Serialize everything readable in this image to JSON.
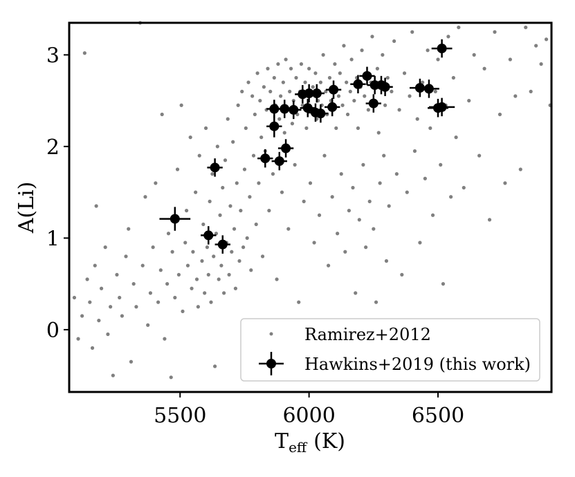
{
  "chart_data": {
    "type": "scatter",
    "title": "",
    "xlabel": "T",
    "xlabel_sub": "eff",
    "xlabel_unit": "(K)",
    "ylabel": "A(Li)",
    "xlim": [
      5070,
      6940
    ],
    "ylim": [
      -0.68,
      3.35
    ],
    "x_ticks": [
      5500,
      6000,
      6500
    ],
    "y_ticks": [
      0,
      1,
      2,
      3
    ],
    "grid": false,
    "legend_position": "lower-right",
    "series": [
      {
        "name": "Ramirez+2012",
        "marker": "small-dot",
        "color": "#808080",
        "points": [
          [
            5090,
            0.35
          ],
          [
            5105,
            -0.1
          ],
          [
            5120,
            0.15
          ],
          [
            5130,
            3.02
          ],
          [
            5140,
            0.55
          ],
          [
            5150,
            0.3
          ],
          [
            5160,
            -0.2
          ],
          [
            5170,
            0.7
          ],
          [
            5175,
            1.35
          ],
          [
            5185,
            0.1
          ],
          [
            5195,
            0.45
          ],
          [
            5210,
            0.9
          ],
          [
            5220,
            -0.05
          ],
          [
            5230,
            0.25
          ],
          [
            5240,
            -0.5
          ],
          [
            5255,
            0.6
          ],
          [
            5265,
            0.35
          ],
          [
            5275,
            0.15
          ],
          [
            5290,
            0.8
          ],
          [
            5300,
            1.1
          ],
          [
            5310,
            -0.35
          ],
          [
            5320,
            0.5
          ],
          [
            5330,
            0.25
          ],
          [
            5345,
            3.35
          ],
          [
            5355,
            0.7
          ],
          [
            5365,
            1.45
          ],
          [
            5375,
            0.05
          ],
          [
            5385,
            0.4
          ],
          [
            5395,
            0.9
          ],
          [
            5405,
            1.6
          ],
          [
            5415,
            0.3
          ],
          [
            5425,
            0.65
          ],
          [
            5430,
            2.35
          ],
          [
            5440,
            -0.1
          ],
          [
            5450,
            0.5
          ],
          [
            5455,
            1.05
          ],
          [
            5465,
            -0.52
          ],
          [
            5470,
            0.85
          ],
          [
            5480,
            0.35
          ],
          [
            5490,
            1.75
          ],
          [
            5495,
            0.6
          ],
          [
            5505,
            2.45
          ],
          [
            5510,
            0.2
          ],
          [
            5520,
            0.95
          ],
          [
            5525,
            1.3
          ],
          [
            5530,
            0.7
          ],
          [
            5540,
            2.1
          ],
          [
            5545,
            0.45
          ],
          [
            5550,
            0.85
          ],
          [
            5560,
            1.5
          ],
          [
            5565,
            0.55
          ],
          [
            5570,
            0.25
          ],
          [
            5575,
            1.9
          ],
          [
            5585,
            0.75
          ],
          [
            5590,
            1.15
          ],
          [
            5595,
            0.4
          ],
          [
            5600,
            2.2
          ],
          [
            5605,
            0.9
          ],
          [
            5610,
            0.6
          ],
          [
            5615,
            1.4
          ],
          [
            5620,
            0.3
          ],
          [
            5625,
            1.7
          ],
          [
            5630,
            0.8
          ],
          [
            5635,
            -0.4
          ],
          [
            5640,
            1.05
          ],
          [
            5645,
            2.0
          ],
          [
            5650,
            0.55
          ],
          [
            5655,
            1.25
          ],
          [
            5660,
            0.7
          ],
          [
            5665,
            1.55
          ],
          [
            5670,
            0.4
          ],
          [
            5675,
            1.85
          ],
          [
            5680,
            0.95
          ],
          [
            5685,
            2.3
          ],
          [
            5690,
            0.6
          ],
          [
            5695,
            1.35
          ],
          [
            5700,
            0.85
          ],
          [
            5705,
            2.05
          ],
          [
            5710,
            1.1
          ],
          [
            5715,
            0.45
          ],
          [
            5720,
            1.6
          ],
          [
            5725,
            2.45
          ],
          [
            5730,
            0.75
          ],
          [
            5735,
            1.3
          ],
          [
            5740,
            2.6
          ],
          [
            5745,
            0.9
          ],
          [
            5750,
            1.75
          ],
          [
            5755,
            2.2
          ],
          [
            5760,
            1.0
          ],
          [
            5765,
            2.7
          ],
          [
            5770,
            1.45
          ],
          [
            5775,
            0.65
          ],
          [
            5780,
            2.55
          ],
          [
            5785,
            1.9
          ],
          [
            5790,
            2.35
          ],
          [
            5795,
            1.15
          ],
          [
            5800,
            2.8
          ],
          [
            5805,
            1.6
          ],
          [
            5810,
            2.5
          ],
          [
            5815,
            2.1
          ],
          [
            5820,
            0.8
          ],
          [
            5825,
            2.65
          ],
          [
            5830,
            1.95
          ],
          [
            5835,
            2.4
          ],
          [
            5840,
            2.85
          ],
          [
            5845,
            1.3
          ],
          [
            5850,
            2.6
          ],
          [
            5855,
            2.2
          ],
          [
            5860,
            1.7
          ],
          [
            5865,
            2.75
          ],
          [
            5870,
            2.45
          ],
          [
            5875,
            0.55
          ],
          [
            5880,
            2.9
          ],
          [
            5885,
            2.3
          ],
          [
            5890,
            2.55
          ],
          [
            5895,
            1.5
          ],
          [
            5900,
            2.7
          ],
          [
            5905,
            2.15
          ],
          [
            5910,
            2.95
          ],
          [
            5915,
            2.4
          ],
          [
            5920,
            1.1
          ],
          [
            5925,
            2.6
          ],
          [
            5930,
            2.85
          ],
          [
            5935,
            2.25
          ],
          [
            5940,
            2.5
          ],
          [
            5945,
            1.8
          ],
          [
            5950,
            2.75
          ],
          [
            5955,
            2.35
          ],
          [
            5960,
            0.3
          ],
          [
            5965,
            2.6
          ],
          [
            5970,
            2.9
          ],
          [
            5975,
            2.45
          ],
          [
            5980,
            1.4
          ],
          [
            5985,
            2.7
          ],
          [
            5990,
            2.2
          ],
          [
            5995,
            2.55
          ],
          [
            6000,
            2.85
          ],
          [
            6005,
            1.6
          ],
          [
            6010,
            2.4
          ],
          [
            6015,
            2.65
          ],
          [
            6020,
            0.95
          ],
          [
            6025,
            2.8
          ],
          [
            6030,
            2.3
          ],
          [
            6035,
            2.5
          ],
          [
            6040,
            1.25
          ],
          [
            6045,
            2.7
          ],
          [
            6050,
            2.45
          ],
          [
            6055,
            3.0
          ],
          [
            6060,
            1.9
          ],
          [
            6065,
            2.6
          ],
          [
            6070,
            2.35
          ],
          [
            6075,
            0.7
          ],
          [
            6080,
            2.75
          ],
          [
            6085,
            2.5
          ],
          [
            6090,
            1.45
          ],
          [
            6095,
            2.65
          ],
          [
            6100,
            2.9
          ],
          [
            6105,
            2.2
          ],
          [
            6110,
            1.05
          ],
          [
            6115,
            2.55
          ],
          [
            6120,
            2.8
          ],
          [
            6125,
            1.7
          ],
          [
            6130,
            2.45
          ],
          [
            6135,
            3.1
          ],
          [
            6140,
            0.85
          ],
          [
            6145,
            2.7
          ],
          [
            6150,
            2.35
          ],
          [
            6155,
            1.3
          ],
          [
            6160,
            2.6
          ],
          [
            6165,
            2.95
          ],
          [
            6170,
            1.55
          ],
          [
            6175,
            2.5
          ],
          [
            6180,
            0.4
          ],
          [
            6185,
            2.75
          ],
          [
            6190,
            2.2
          ],
          [
            6195,
            1.2
          ],
          [
            6200,
            2.65
          ],
          [
            6205,
            3.05
          ],
          [
            6210,
            1.8
          ],
          [
            6215,
            2.55
          ],
          [
            6220,
            0.9
          ],
          [
            6225,
            2.8
          ],
          [
            6230,
            2.4
          ],
          [
            6235,
            1.4
          ],
          [
            6240,
            2.7
          ],
          [
            6245,
            3.2
          ],
          [
            6250,
            1.1
          ],
          [
            6255,
            2.5
          ],
          [
            6260,
            0.3
          ],
          [
            6265,
            2.85
          ],
          [
            6270,
            2.15
          ],
          [
            6275,
            1.6
          ],
          [
            6280,
            2.65
          ],
          [
            6285,
            3.0
          ],
          [
            6290,
            1.9
          ],
          [
            6295,
            2.45
          ],
          [
            6300,
            0.75
          ],
          [
            6305,
            2.75
          ],
          [
            6310,
            1.35
          ],
          [
            6320,
            2.6
          ],
          [
            6330,
            3.15
          ],
          [
            6340,
            1.7
          ],
          [
            6350,
            2.4
          ],
          [
            6360,
            0.6
          ],
          [
            6370,
            2.8
          ],
          [
            6380,
            1.5
          ],
          [
            6390,
            2.55
          ],
          [
            6400,
            3.25
          ],
          [
            6410,
            1.95
          ],
          [
            6420,
            2.3
          ],
          [
            6430,
            0.95
          ],
          [
            6440,
            2.7
          ],
          [
            6450,
            1.65
          ],
          [
            6460,
            3.05
          ],
          [
            6470,
            2.2
          ],
          [
            6480,
            1.25
          ],
          [
            6490,
            2.6
          ],
          [
            6500,
            2.95
          ],
          [
            6510,
            1.8
          ],
          [
            6520,
            0.5
          ],
          [
            6530,
            2.45
          ],
          [
            6540,
            3.2
          ],
          [
            6550,
            1.45
          ],
          [
            6560,
            2.75
          ],
          [
            6570,
            2.1
          ],
          [
            6580,
            3.3
          ],
          [
            6600,
            1.55
          ],
          [
            6620,
            2.5
          ],
          [
            6640,
            3.0
          ],
          [
            6660,
            1.9
          ],
          [
            6680,
            2.85
          ],
          [
            6700,
            1.2
          ],
          [
            6720,
            3.25
          ],
          [
            6740,
            2.35
          ],
          [
            6760,
            1.6
          ],
          [
            6780,
            2.95
          ],
          [
            6800,
            2.55
          ],
          [
            6820,
            1.75
          ],
          [
            6840,
            3.3
          ],
          [
            6860,
            2.6
          ],
          [
            6880,
            3.1
          ],
          [
            6900,
            2.9
          ],
          [
            6920,
            3.17
          ],
          [
            6935,
            2.45
          ]
        ]
      },
      {
        "name": "Hawkins+2019 (this work)",
        "marker": "circle-errorbar",
        "color": "#000000",
        "points": [
          [
            5480,
            1.21,
            60,
            0.13
          ],
          [
            5610,
            1.03,
            30,
            0.1
          ],
          [
            5635,
            1.77,
            30,
            0.1
          ],
          [
            5665,
            0.93,
            30,
            0.1
          ],
          [
            5830,
            1.87,
            30,
            0.1
          ],
          [
            5865,
            2.41,
            30,
            0.1
          ],
          [
            5865,
            2.22,
            30,
            0.12
          ],
          [
            5885,
            1.84,
            30,
            0.1
          ],
          [
            5905,
            2.41,
            30,
            0.1
          ],
          [
            5910,
            1.98,
            30,
            0.1
          ],
          [
            5940,
            2.4,
            30,
            0.1
          ],
          [
            5975,
            2.57,
            30,
            0.1
          ],
          [
            5995,
            2.42,
            30,
            0.1
          ],
          [
            6000,
            2.58,
            30,
            0.1
          ],
          [
            6025,
            2.37,
            30,
            0.1
          ],
          [
            6030,
            2.58,
            30,
            0.1
          ],
          [
            6045,
            2.36,
            30,
            0.1
          ],
          [
            6090,
            2.43,
            30,
            0.1
          ],
          [
            6095,
            2.62,
            30,
            0.1
          ],
          [
            6190,
            2.68,
            30,
            0.1
          ],
          [
            6225,
            2.77,
            30,
            0.1
          ],
          [
            6250,
            2.47,
            30,
            0.1
          ],
          [
            6255,
            2.67,
            30,
            0.1
          ],
          [
            6280,
            2.67,
            30,
            0.1
          ],
          [
            6295,
            2.65,
            30,
            0.1
          ],
          [
            6430,
            2.64,
            40,
            0.1
          ],
          [
            6465,
            2.63,
            40,
            0.1
          ],
          [
            6500,
            2.42,
            40,
            0.1
          ],
          [
            6515,
            2.43,
            50,
            0.1
          ],
          [
            6515,
            3.07,
            40,
            0.1
          ]
        ]
      }
    ]
  }
}
